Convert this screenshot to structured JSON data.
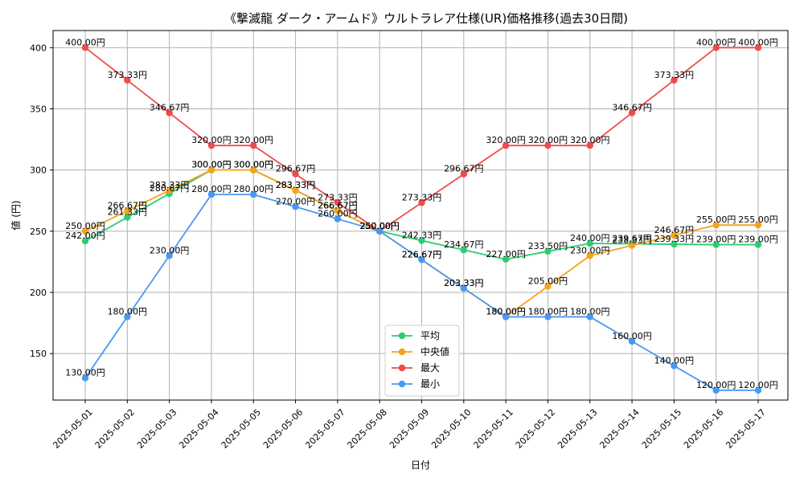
{
  "chart_data": {
    "type": "line",
    "title": "《撃滅龍 ダーク・アームド》ウルトラレア仕様(UR)価格推移(過去30日間)",
    "xlabel": "日付",
    "ylabel": "値 (円)",
    "ylim": [
      112,
      414
    ],
    "yticks": [
      150,
      200,
      250,
      300,
      350,
      400
    ],
    "grid": true,
    "legend": "bottom-center",
    "categories": [
      "2025-05-01",
      "2025-05-02",
      "2025-05-03",
      "2025-05-04",
      "2025-05-05",
      "2025-05-06",
      "2025-05-07",
      "2025-05-08",
      "2025-05-09",
      "2025-05-10",
      "2025-05-11",
      "2025-05-12",
      "2025-05-13",
      "2025-05-14",
      "2025-05-15",
      "2025-05-16",
      "2025-05-17"
    ],
    "series": [
      {
        "name": "平均",
        "color": "#2ecc71",
        "values": [
          242.0,
          261.33,
          280.67,
          300.0,
          300.0,
          283.33,
          266.67,
          250.0,
          242.33,
          234.67,
          227.0,
          233.5,
          240.0,
          239.67,
          239.33,
          239.0,
          239.0
        ],
        "labels": [
          "242.00円",
          "261.33円",
          "280.67円",
          "300.00円",
          "300.00円",
          "283.33円",
          "266.67円",
          "250.00円",
          "242.33円",
          "234.67円",
          "227.00円",
          "233.50円",
          "240.00円",
          "239.67円",
          "239.33円",
          "239.00円",
          "239.00円"
        ]
      },
      {
        "name": "中央値",
        "color": "#f5a31a",
        "values": [
          250.0,
          266.67,
          283.33,
          300.0,
          300.0,
          283.33,
          266.67,
          250.0,
          226.67,
          203.33,
          180.0,
          205.0,
          230.0,
          238.33,
          246.67,
          255.0,
          255.0
        ],
        "labels": [
          "250.00円",
          "266.67円",
          "283.33円",
          "300.00円",
          "300.00円",
          "283.33円",
          "266.67円",
          "250.00円",
          "226.67円",
          "203.33円",
          "180.00円",
          "205.00円",
          "230.00円",
          "238.33円",
          "246.67円",
          "255.00円",
          "255.00円"
        ]
      },
      {
        "name": "最大",
        "color": "#ef4b4b",
        "values": [
          400.0,
          373.33,
          346.67,
          320.0,
          320.0,
          296.67,
          273.33,
          250.0,
          273.33,
          296.67,
          320.0,
          320.0,
          320.0,
          346.67,
          373.33,
          400.0,
          400.0
        ],
        "labels": [
          "400.00円",
          "373.33円",
          "346.67円",
          "320.00円",
          "320.00円",
          "296.67円",
          "273.33円",
          "250.00円",
          "273.33円",
          "296.67円",
          "320.00円",
          "320.00円",
          "320.00円",
          "346.67円",
          "373.33円",
          "400.00円",
          "400.00円"
        ]
      },
      {
        "name": "最小",
        "color": "#4a98f0",
        "values": [
          130.0,
          180.0,
          230.0,
          280.0,
          280.0,
          270.0,
          260.0,
          250.0,
          226.67,
          203.33,
          180.0,
          180.0,
          180.0,
          160.0,
          140.0,
          120.0,
          120.0
        ],
        "labels": [
          "130.00円",
          "180.00円",
          "230.00円",
          "280.00円",
          "280.00円",
          "270.00円",
          "260.00円",
          "250.00円",
          "226.67円",
          "203.33円",
          "180.00円",
          "180.00円",
          "180.00円",
          "160.00円",
          "140.00円",
          "120.00円",
          "120.00円"
        ]
      }
    ]
  }
}
